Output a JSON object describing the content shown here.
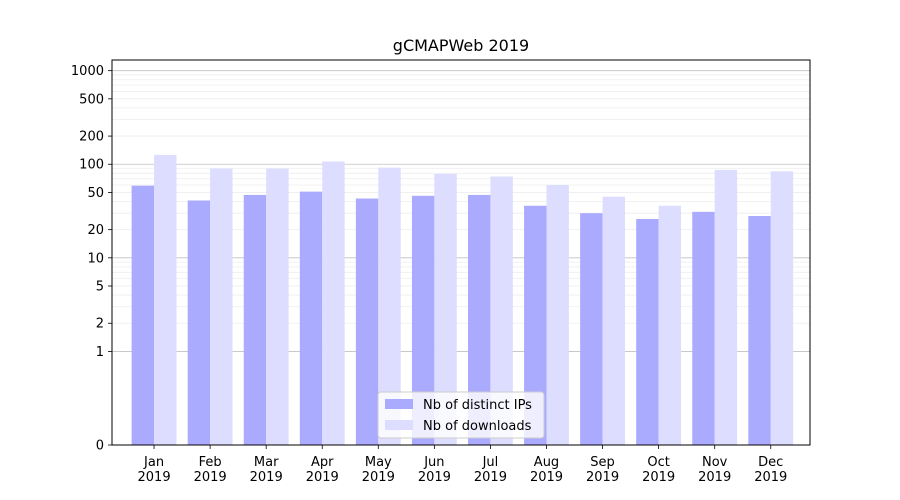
{
  "chart_data": {
    "type": "bar",
    "title": "gCMAPWeb 2019",
    "xlabel": "",
    "ylabel": "",
    "y_scale": "symlog",
    "ylim": [
      0,
      1300
    ],
    "grid": true,
    "legend_position": "bottom-center",
    "categories": [
      {
        "month": "Jan",
        "year": "2019"
      },
      {
        "month": "Feb",
        "year": "2019"
      },
      {
        "month": "Mar",
        "year": "2019"
      },
      {
        "month": "Apr",
        "year": "2019"
      },
      {
        "month": "May",
        "year": "2019"
      },
      {
        "month": "Jun",
        "year": "2019"
      },
      {
        "month": "Jul",
        "year": "2019"
      },
      {
        "month": "Aug",
        "year": "2019"
      },
      {
        "month": "Sep",
        "year": "2019"
      },
      {
        "month": "Oct",
        "year": "2019"
      },
      {
        "month": "Nov",
        "year": "2019"
      },
      {
        "month": "Dec",
        "year": "2019"
      }
    ],
    "y_ticks": [
      {
        "value": 0,
        "label": "0"
      },
      {
        "value": 1,
        "label": "1"
      },
      {
        "value": 2,
        "label": "2"
      },
      {
        "value": 5,
        "label": "5"
      },
      {
        "value": 10,
        "label": "10"
      },
      {
        "value": 20,
        "label": "20"
      },
      {
        "value": 50,
        "label": "50"
      },
      {
        "value": 100,
        "label": "100"
      },
      {
        "value": 200,
        "label": "200"
      },
      {
        "value": 500,
        "label": "500"
      },
      {
        "value": 1000,
        "label": "1000"
      }
    ],
    "series": [
      {
        "name": "Nb of distinct IPs",
        "color": "#aaaaff",
        "values": [
          59,
          41,
          47,
          51,
          43,
          46,
          47,
          36,
          30,
          26,
          31,
          28
        ]
      },
      {
        "name": "Nb of downloads",
        "color": "#ddddff",
        "values": [
          126,
          90,
          90,
          107,
          92,
          79,
          74,
          60,
          45,
          36,
          87,
          84
        ]
      }
    ]
  }
}
